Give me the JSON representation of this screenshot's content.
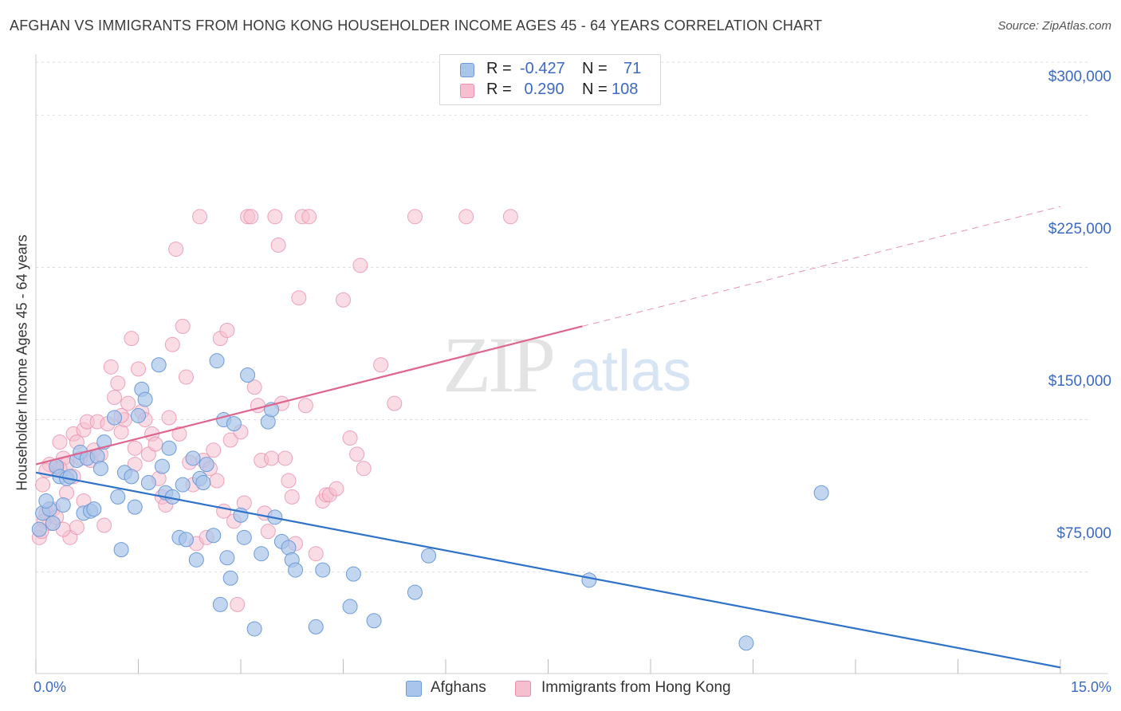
{
  "title": "AFGHAN VS IMMIGRANTS FROM HONG KONG HOUSEHOLDER INCOME AGES 45 - 64 YEARS CORRELATION CHART",
  "source": "Source: ZipAtlas.com",
  "watermark": {
    "zip": "ZIP",
    "atlas": "atlas"
  },
  "legend": {
    "rows": [
      {
        "r_label": "R =",
        "r_value": "-0.427",
        "n_label": "N =",
        "n_value": "71"
      },
      {
        "r_label": "R =",
        "r_value": " 0.290",
        "n_label": "N =",
        "n_value": "108"
      }
    ]
  },
  "bottom_legend": {
    "series1": "Afghans",
    "series2": "Immigrants from Hong Kong"
  },
  "colors": {
    "blue_fill": "#a9c5ea",
    "blue_stroke": "#6d9bd8",
    "blue_line": "#2f72c9",
    "pink_fill": "#f5bfd0",
    "pink_stroke": "#e98fad",
    "pink_line": "#e0658d",
    "grid": "#dddddd",
    "axis_text": "#3b6ac4"
  },
  "chart_data": {
    "type": "scatter",
    "title": "AFGHAN VS IMMIGRANTS FROM HONG KONG HOUSEHOLDER INCOME AGES 45 - 64 YEARS CORRELATION CHART",
    "xlabel": "",
    "ylabel": "Householder Income Ages 45 - 64 years",
    "xlim": [
      0,
      15
    ],
    "ylim": [
      25000,
      330000
    ],
    "x_tick_labels": [
      "0.0%",
      "15.0%"
    ],
    "y_ticks": [
      75000,
      150000,
      225000,
      300000
    ],
    "y_tick_labels": [
      "$75,000",
      "$150,000",
      "$225,000",
      "$300,000"
    ],
    "grid": true,
    "legend_position": "top-center",
    "series": [
      {
        "name": "Afghans",
        "R": -0.427,
        "N": 71,
        "trend": {
          "x": [
            0,
            15
          ],
          "y": [
            124000,
            28000
          ]
        },
        "points": [
          [
            0.05,
            96000
          ],
          [
            0.1,
            104000
          ],
          [
            0.2,
            106000
          ],
          [
            0.3,
            127000
          ],
          [
            0.35,
            122000
          ],
          [
            0.4,
            108000
          ],
          [
            0.45,
            121000
          ],
          [
            0.5,
            122000
          ],
          [
            0.6,
            130000
          ],
          [
            0.65,
            134000
          ],
          [
            0.7,
            104000
          ],
          [
            0.75,
            131000
          ],
          [
            0.8,
            105000
          ],
          [
            0.85,
            106000
          ],
          [
            0.9,
            132000
          ],
          [
            0.95,
            126000
          ],
          [
            1.0,
            139000
          ],
          [
            1.15,
            151000
          ],
          [
            1.2,
            112000
          ],
          [
            1.25,
            86000
          ],
          [
            1.3,
            124000
          ],
          [
            1.4,
            122000
          ],
          [
            1.45,
            107000
          ],
          [
            1.5,
            152000
          ],
          [
            1.55,
            165000
          ],
          [
            1.6,
            160000
          ],
          [
            1.65,
            119000
          ],
          [
            1.8,
            177000
          ],
          [
            1.85,
            127000
          ],
          [
            1.9,
            114000
          ],
          [
            1.95,
            136000
          ],
          [
            2.0,
            112000
          ],
          [
            2.1,
            92000
          ],
          [
            2.15,
            118000
          ],
          [
            2.2,
            91000
          ],
          [
            2.3,
            131000
          ],
          [
            2.35,
            81000
          ],
          [
            2.4,
            121000
          ],
          [
            2.45,
            119000
          ],
          [
            2.5,
            128000
          ],
          [
            2.6,
            93000
          ],
          [
            2.65,
            179000
          ],
          [
            2.7,
            59000
          ],
          [
            2.75,
            150000
          ],
          [
            2.8,
            82000
          ],
          [
            2.85,
            72000
          ],
          [
            2.9,
            148000
          ],
          [
            3.0,
            103000
          ],
          [
            3.05,
            92000
          ],
          [
            3.1,
            172000
          ],
          [
            3.2,
            47000
          ],
          [
            3.3,
            84000
          ],
          [
            3.4,
            149000
          ],
          [
            3.45,
            155000
          ],
          [
            3.5,
            102000
          ],
          [
            3.6,
            90000
          ],
          [
            3.7,
            87000
          ],
          [
            3.75,
            81000
          ],
          [
            3.8,
            76000
          ],
          [
            4.1,
            48000
          ],
          [
            4.2,
            76000
          ],
          [
            4.6,
            58000
          ],
          [
            4.65,
            74000
          ],
          [
            4.95,
            51000
          ],
          [
            5.55,
            65000
          ],
          [
            5.75,
            83000
          ],
          [
            8.1,
            71000
          ],
          [
            10.4,
            40000
          ],
          [
            11.5,
            114000
          ],
          [
            0.15,
            110000
          ],
          [
            0.25,
            99000
          ]
        ]
      },
      {
        "name": "Immigrants from Hong Kong",
        "R": 0.29,
        "N": 108,
        "trend": {
          "x": [
            0,
            8
          ],
          "y": [
            128000,
            196000
          ]
        },
        "trend_dashed": {
          "x": [
            8,
            15
          ],
          "y": [
            196000,
            255000
          ]
        },
        "points": [
          [
            0.05,
            92000
          ],
          [
            0.1,
            118000
          ],
          [
            0.15,
            104000
          ],
          [
            0.2,
            99000
          ],
          [
            0.3,
            126000
          ],
          [
            0.35,
            139000
          ],
          [
            0.4,
            131000
          ],
          [
            0.45,
            128000
          ],
          [
            0.5,
            92000
          ],
          [
            0.55,
            143000
          ],
          [
            0.6,
            139000
          ],
          [
            0.65,
            131000
          ],
          [
            0.7,
            145000
          ],
          [
            0.75,
            149000
          ],
          [
            0.8,
            130000
          ],
          [
            0.85,
            135000
          ],
          [
            0.9,
            149000
          ],
          [
            0.95,
            133000
          ],
          [
            1.0,
            98000
          ],
          [
            1.05,
            148000
          ],
          [
            1.1,
            176000
          ],
          [
            1.15,
            161000
          ],
          [
            1.2,
            168000
          ],
          [
            1.25,
            144000
          ],
          [
            1.3,
            150000
          ],
          [
            1.35,
            158000
          ],
          [
            1.4,
            190000
          ],
          [
            1.45,
            136000
          ],
          [
            1.5,
            175000
          ],
          [
            1.55,
            154000
          ],
          [
            1.6,
            150000
          ],
          [
            1.65,
            133000
          ],
          [
            1.7,
            143000
          ],
          [
            1.75,
            138000
          ],
          [
            1.8,
            121000
          ],
          [
            1.85,
            112000
          ],
          [
            1.9,
            108000
          ],
          [
            1.95,
            151000
          ],
          [
            2.0,
            187000
          ],
          [
            2.05,
            234000
          ],
          [
            2.1,
            143000
          ],
          [
            2.15,
            196000
          ],
          [
            2.2,
            171000
          ],
          [
            2.25,
            129000
          ],
          [
            2.3,
            118000
          ],
          [
            2.35,
            89000
          ],
          [
            2.4,
            250000
          ],
          [
            2.45,
            130000
          ],
          [
            2.5,
            92000
          ],
          [
            2.55,
            126000
          ],
          [
            2.6,
            135000
          ],
          [
            2.65,
            120000
          ],
          [
            2.7,
            190000
          ],
          [
            2.75,
            105000
          ],
          [
            2.8,
            194000
          ],
          [
            2.85,
            140000
          ],
          [
            2.9,
            100000
          ],
          [
            2.95,
            59000
          ],
          [
            3.0,
            144000
          ],
          [
            3.05,
            109000
          ],
          [
            3.1,
            250000
          ],
          [
            3.15,
            250000
          ],
          [
            3.2,
            166000
          ],
          [
            3.25,
            157000
          ],
          [
            3.3,
            130000
          ],
          [
            3.35,
            104000
          ],
          [
            3.4,
            95000
          ],
          [
            3.45,
            131000
          ],
          [
            3.5,
            250000
          ],
          [
            3.55,
            236000
          ],
          [
            3.6,
            158000
          ],
          [
            3.65,
            131000
          ],
          [
            3.7,
            120000
          ],
          [
            3.75,
            112000
          ],
          [
            3.8,
            89000
          ],
          [
            3.85,
            210000
          ],
          [
            3.9,
            250000
          ],
          [
            3.95,
            157000
          ],
          [
            4.0,
            250000
          ],
          [
            4.1,
            84000
          ],
          [
            4.2,
            110000
          ],
          [
            4.25,
            113000
          ],
          [
            4.3,
            113000
          ],
          [
            4.4,
            116000
          ],
          [
            4.5,
            209000
          ],
          [
            4.6,
            141000
          ],
          [
            4.7,
            133000
          ],
          [
            4.75,
            226000
          ],
          [
            4.8,
            126000
          ],
          [
            5.05,
            177000
          ],
          [
            5.25,
            158000
          ],
          [
            5.55,
            250000
          ],
          [
            6.3,
            250000
          ],
          [
            6.95,
            250000
          ],
          [
            1.25,
            152000
          ],
          [
            1.45,
            128000
          ],
          [
            0.35,
            126000
          ],
          [
            0.45,
            114000
          ],
          [
            0.55,
            122000
          ],
          [
            0.6,
            97000
          ],
          [
            0.7,
            110000
          ],
          [
            0.25,
            106000
          ],
          [
            0.2,
            128000
          ],
          [
            0.15,
            125000
          ],
          [
            0.12,
            100000
          ],
          [
            0.08,
            95000
          ],
          [
            0.3,
            102000
          ],
          [
            0.4,
            96000
          ]
        ]
      }
    ]
  }
}
